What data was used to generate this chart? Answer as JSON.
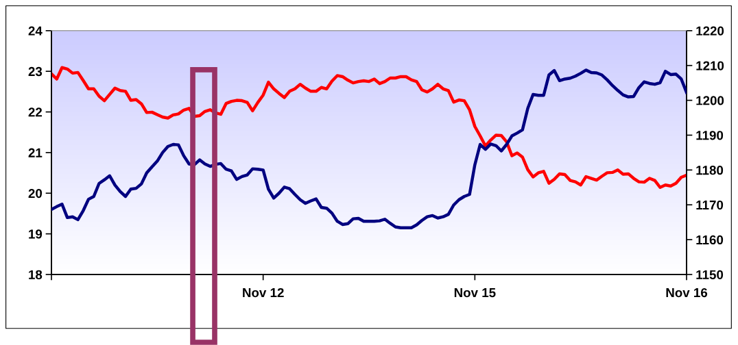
{
  "chart_data": {
    "type": "line",
    "categories": [
      null,
      null,
      null,
      null,
      null,
      null,
      null,
      null,
      null,
      null,
      null,
      null,
      null,
      null,
      null,
      null,
      null,
      null,
      null,
      null,
      null,
      null,
      null,
      null,
      null,
      null,
      null,
      null,
      null,
      null,
      null,
      null,
      null,
      null,
      null,
      null,
      null,
      null,
      null,
      null,
      "Nov 12",
      null,
      null,
      null,
      null,
      null,
      null,
      null,
      null,
      null,
      null,
      null,
      null,
      null,
      null,
      null,
      null,
      null,
      null,
      null,
      null,
      null,
      null,
      null,
      null,
      null,
      null,
      null,
      null,
      null,
      null,
      null,
      null,
      null,
      null,
      null,
      null,
      null,
      null,
      null,
      "Nov 15",
      null,
      null,
      null,
      null,
      null,
      null,
      null,
      null,
      null,
      null,
      null,
      null,
      null,
      null,
      null,
      null,
      null,
      null,
      null,
      null,
      null,
      null,
      null,
      null,
      null,
      null,
      null,
      null,
      null,
      null,
      null,
      null,
      null,
      null,
      null,
      null,
      null,
      null,
      null,
      "Nov 16"
    ],
    "ylim": [
      18,
      24
    ],
    "yticks": [
      18,
      19,
      20,
      21,
      22,
      23,
      24
    ],
    "y2lim": [
      1150,
      1220
    ],
    "y2ticks": [
      1150,
      1160,
      1170,
      1180,
      1190,
      1200,
      1210,
      1220
    ],
    "grid": false,
    "legend": false,
    "marker": "none",
    "line_style": "solid",
    "series": [
      {
        "color": "#000080",
        "values": [
          19.6,
          19.67,
          19.73,
          19.4,
          19.42,
          19.35,
          19.57,
          19.85,
          19.92,
          20.24,
          20.33,
          20.43,
          20.2,
          20.04,
          19.92,
          20.1,
          20.12,
          20.23,
          20.5,
          20.65,
          20.79,
          21.0,
          21.15,
          21.2,
          21.19,
          20.92,
          20.72,
          20.7,
          20.82,
          20.72,
          20.66,
          20.71,
          20.73,
          20.59,
          20.55,
          20.34,
          20.41,
          20.45,
          20.6,
          20.59,
          20.57,
          20.1,
          19.88,
          20.0,
          20.15,
          20.11,
          19.97,
          19.84,
          19.75,
          19.81,
          19.86,
          19.65,
          19.63,
          19.51,
          19.31,
          19.23,
          19.25,
          19.37,
          19.38,
          19.31,
          19.31,
          19.31,
          19.32,
          19.36,
          19.26,
          19.17,
          19.15,
          19.15,
          19.15,
          19.22,
          19.33,
          19.42,
          19.45,
          19.39,
          19.42,
          19.48,
          19.71,
          19.84,
          19.92,
          19.97,
          20.7,
          21.2,
          21.08,
          21.21,
          21.17,
          21.04,
          21.2,
          21.41,
          21.48,
          21.56,
          22.09,
          22.43,
          22.41,
          22.41,
          22.91,
          23.02,
          22.77,
          22.81,
          22.83,
          22.88,
          22.95,
          23.03,
          22.97,
          22.96,
          22.91,
          22.79,
          22.65,
          22.53,
          22.42,
          22.37,
          22.38,
          22.6,
          22.74,
          22.7,
          22.68,
          22.72,
          23.0,
          22.92,
          22.93,
          22.81,
          22.48
        ]
      },
      {
        "color": "#ff0000",
        "axis": "y2",
        "values": [
          1207.6,
          1206.1,
          1209.4,
          1209.0,
          1207.8,
          1208.0,
          1205.7,
          1203.3,
          1203.3,
          1201.2,
          1199.9,
          1201.7,
          1203.5,
          1202.8,
          1202.6,
          1200.0,
          1200.2,
          1199.0,
          1196.5,
          1196.6,
          1195.9,
          1195.2,
          1194.9,
          1195.8,
          1196.1,
          1197.2,
          1197.7,
          1195.4,
          1195.6,
          1196.8,
          1197.3,
          1196.4,
          1196.0,
          1199.1,
          1199.7,
          1200.0,
          1199.9,
          1199.4,
          1197.0,
          1199.4,
          1201.5,
          1205.2,
          1203.3,
          1202.0,
          1200.8,
          1202.6,
          1203.3,
          1204.6,
          1203.5,
          1202.6,
          1202.6,
          1203.7,
          1203.3,
          1205.5,
          1207.1,
          1206.8,
          1205.8,
          1205.0,
          1205.4,
          1205.6,
          1205.4,
          1206.1,
          1204.8,
          1205.4,
          1206.4,
          1206.4,
          1206.8,
          1206.8,
          1205.9,
          1205.4,
          1203.0,
          1202.4,
          1203.3,
          1204.6,
          1203.3,
          1202.8,
          1199.5,
          1200.1,
          1199.9,
          1197.3,
          1192.5,
          1189.8,
          1186.9,
          1188.6,
          1190.0,
          1189.9,
          1188.1,
          1184.1,
          1184.9,
          1183.7,
          1180.1,
          1178.0,
          1179.2,
          1179.6,
          1176.2,
          1177.3,
          1178.9,
          1178.7,
          1177.0,
          1176.6,
          1175.7,
          1178.1,
          1177.6,
          1177.1,
          1178.2,
          1179.2,
          1179.3,
          1180.0,
          1178.8,
          1178.9,
          1177.6,
          1176.6,
          1176.5,
          1177.6,
          1177.0,
          1175.0,
          1175.7,
          1175.4,
          1176.2,
          1177.9,
          1178.5
        ]
      }
    ]
  }
}
